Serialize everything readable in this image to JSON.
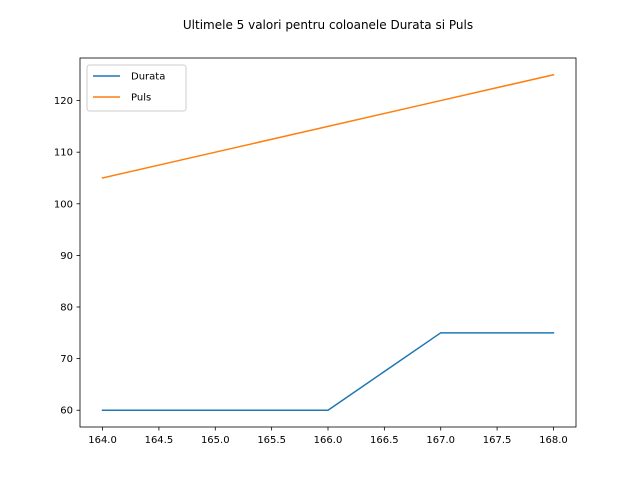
{
  "chart_data": {
    "type": "line",
    "title": "Ultimele 5 valori pentru coloanele Durata si Puls",
    "xlabel": "",
    "ylabel": "",
    "x": [
      164,
      165,
      166,
      167,
      168
    ],
    "series": [
      {
        "name": "Durata",
        "color": "#1f77b4",
        "values": [
          60,
          60,
          60,
          75,
          75
        ]
      },
      {
        "name": "Puls",
        "color": "#ff7f0e",
        "values": [
          105,
          110,
          115,
          120,
          125
        ]
      }
    ],
    "xlim": [
      163.8,
      168.2
    ],
    "ylim": [
      56.75,
      128.25
    ],
    "xticks": [
      "164.0",
      "164.5",
      "165.0",
      "165.5",
      "166.0",
      "166.5",
      "167.0",
      "167.5",
      "168.0"
    ],
    "yticks": [
      "60",
      "70",
      "80",
      "90",
      "100",
      "110",
      "120"
    ],
    "grid": false,
    "legend": "top-left"
  }
}
